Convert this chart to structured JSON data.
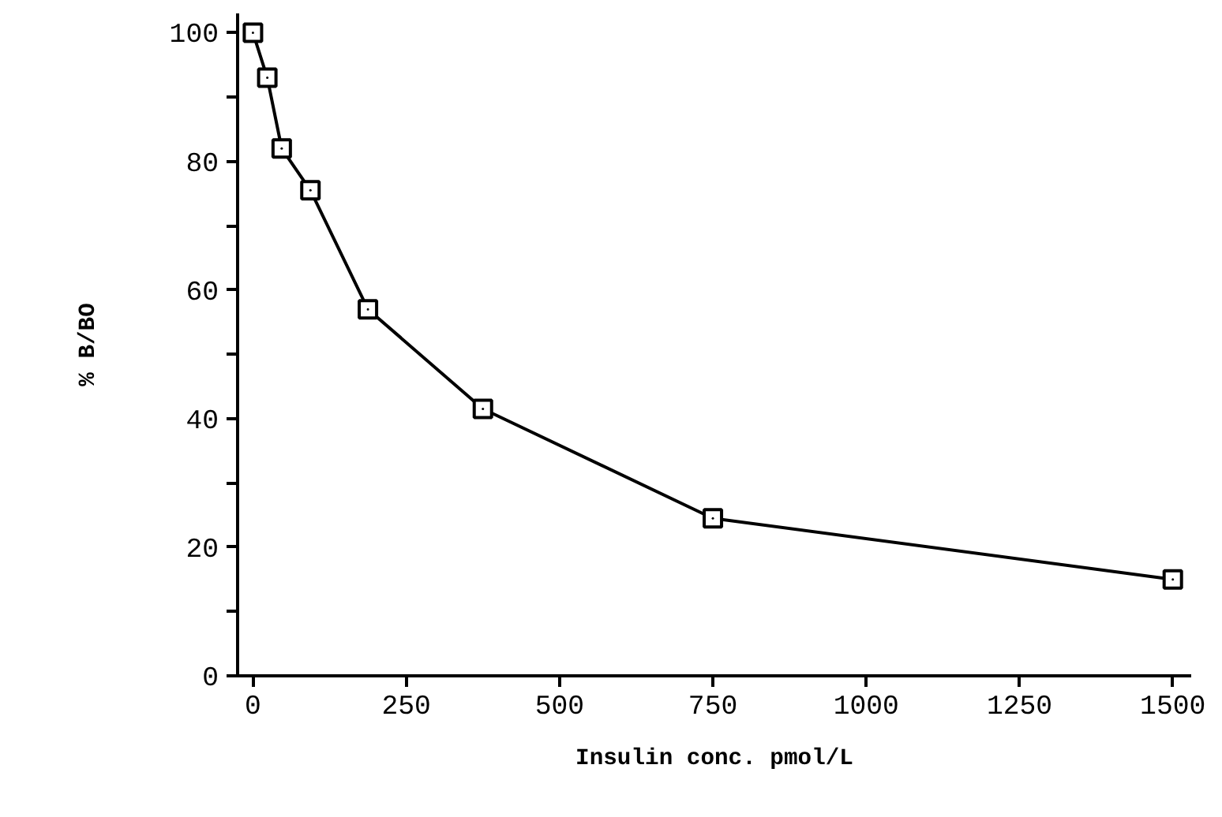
{
  "chart_data": {
    "type": "line",
    "xlabel": "Insulin conc. pmol/L",
    "ylabel": "% B/BO",
    "x": [
      0,
      23.4,
      46.9,
      93.75,
      187.5,
      375,
      750,
      1500
    ],
    "series": [
      {
        "color": "#000000",
        "values": [
          100,
          93,
          82,
          75.5,
          57,
          41.5,
          24.5,
          15
        ]
      }
    ],
    "xlim": [
      -25,
      1530
    ],
    "ylim": [
      0,
      103
    ],
    "xticks": [
      0,
      250,
      500,
      750,
      1000,
      1250,
      1500
    ],
    "yticks": [
      0,
      {
        "value": 10,
        "label": null
      },
      20,
      {
        "value": 30,
        "label": null
      },
      40,
      {
        "value": 50,
        "label": null
      },
      60,
      {
        "value": 70,
        "label": null
      },
      80,
      {
        "value": 90,
        "label": null
      },
      100
    ],
    "marker": "square",
    "line_style": "solid",
    "grid": false
  }
}
